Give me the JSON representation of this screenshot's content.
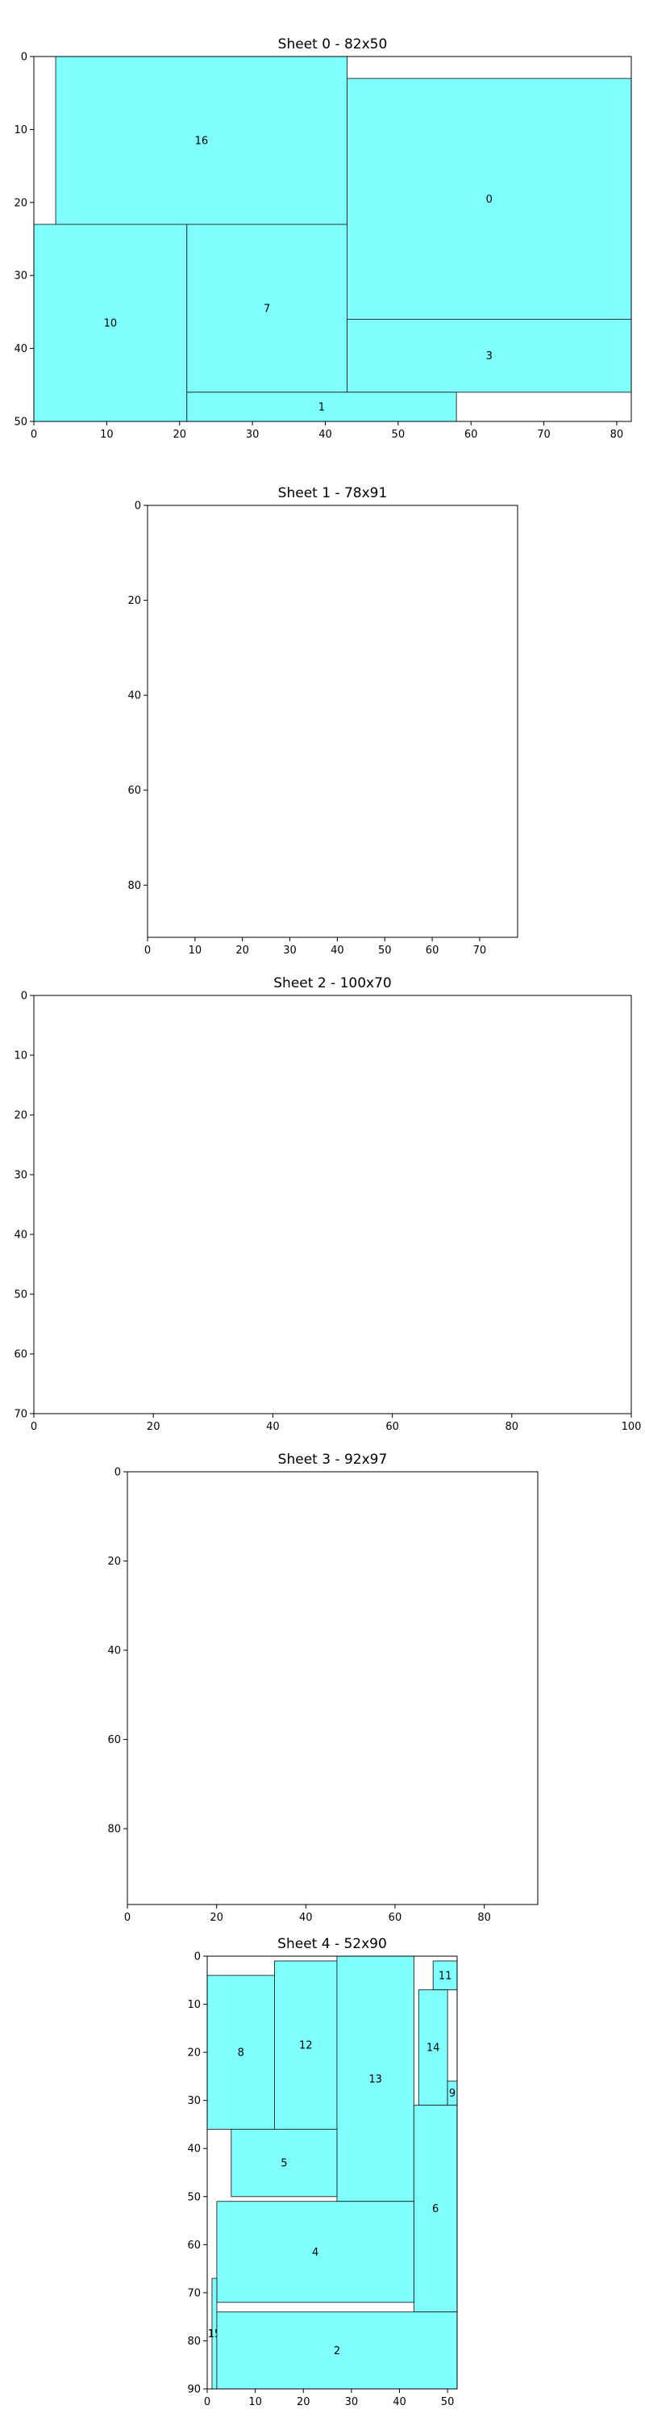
{
  "colors": {
    "piece_fill": "#80ffff",
    "piece_edge": "#222222",
    "frame": "#000000"
  },
  "chart_data": [
    {
      "type": "rectangles",
      "title": "Sheet 0 - 82x50",
      "xlim": [
        0,
        82
      ],
      "ylim": [
        50,
        0
      ],
      "xticks": [
        0,
        10,
        20,
        30,
        40,
        50,
        60,
        70,
        80
      ],
      "yticks": [
        0,
        10,
        20,
        30,
        40,
        50
      ],
      "pieces": [
        {
          "id": "16",
          "x": 3,
          "y": 0,
          "w": 40,
          "h": 23
        },
        {
          "id": "0",
          "x": 43,
          "y": 3,
          "w": 39,
          "h": 33
        },
        {
          "id": "10",
          "x": 0,
          "y": 23,
          "w": 21,
          "h": 27
        },
        {
          "id": "7",
          "x": 21,
          "y": 23,
          "w": 22,
          "h": 23
        },
        {
          "id": "3",
          "x": 43,
          "y": 36,
          "w": 39,
          "h": 10
        },
        {
          "id": "1",
          "x": 21,
          "y": 46,
          "w": 37,
          "h": 4
        }
      ]
    },
    {
      "type": "rectangles",
      "title": "Sheet 1 - 78x91",
      "xlim": [
        0,
        78
      ],
      "ylim": [
        91,
        0
      ],
      "xticks": [
        0,
        10,
        20,
        30,
        40,
        50,
        60,
        70
      ],
      "yticks": [
        0,
        20,
        40,
        60,
        80
      ],
      "pieces": []
    },
    {
      "type": "rectangles",
      "title": "Sheet 2 - 100x70",
      "xlim": [
        0,
        100
      ],
      "ylim": [
        70,
        0
      ],
      "xticks": [
        0,
        20,
        40,
        60,
        80,
        100
      ],
      "yticks": [
        0,
        10,
        20,
        30,
        40,
        50,
        60,
        70
      ],
      "pieces": []
    },
    {
      "type": "rectangles",
      "title": "Sheet 3 - 92x97",
      "xlim": [
        0,
        92
      ],
      "ylim": [
        97,
        0
      ],
      "xticks": [
        0,
        20,
        40,
        60,
        80
      ],
      "yticks": [
        0,
        20,
        40,
        60,
        80
      ],
      "pieces": []
    },
    {
      "type": "rectangles",
      "title": "Sheet 4 - 52x90",
      "xlim": [
        0,
        52
      ],
      "ylim": [
        90,
        0
      ],
      "xticks": [
        0,
        10,
        20,
        30,
        40,
        50
      ],
      "yticks": [
        0,
        10,
        20,
        30,
        40,
        50,
        60,
        70,
        80,
        90
      ],
      "pieces": [
        {
          "id": "8",
          "x": 0,
          "y": 4,
          "w": 14,
          "h": 32
        },
        {
          "id": "12",
          "x": 14,
          "y": 1,
          "w": 13,
          "h": 35
        },
        {
          "id": "13",
          "x": 27,
          "y": 0,
          "w": 16,
          "h": 51
        },
        {
          "id": "11",
          "x": 47,
          "y": 1,
          "w": 5,
          "h": 6
        },
        {
          "id": "14",
          "x": 44,
          "y": 7,
          "w": 6,
          "h": 24
        },
        {
          "id": "9",
          "x": 50,
          "y": 26,
          "w": 2,
          "h": 5
        },
        {
          "id": "5",
          "x": 5,
          "y": 36,
          "w": 22,
          "h": 14
        },
        {
          "id": "6",
          "x": 43,
          "y": 31,
          "w": 9,
          "h": 43
        },
        {
          "id": "4",
          "x": 2,
          "y": 51,
          "w": 41,
          "h": 21
        },
        {
          "id": "15",
          "x": 1,
          "y": 67,
          "w": 1,
          "h": 23
        },
        {
          "id": "2",
          "x": 2,
          "y": 74,
          "w": 50,
          "h": 16
        }
      ]
    }
  ]
}
